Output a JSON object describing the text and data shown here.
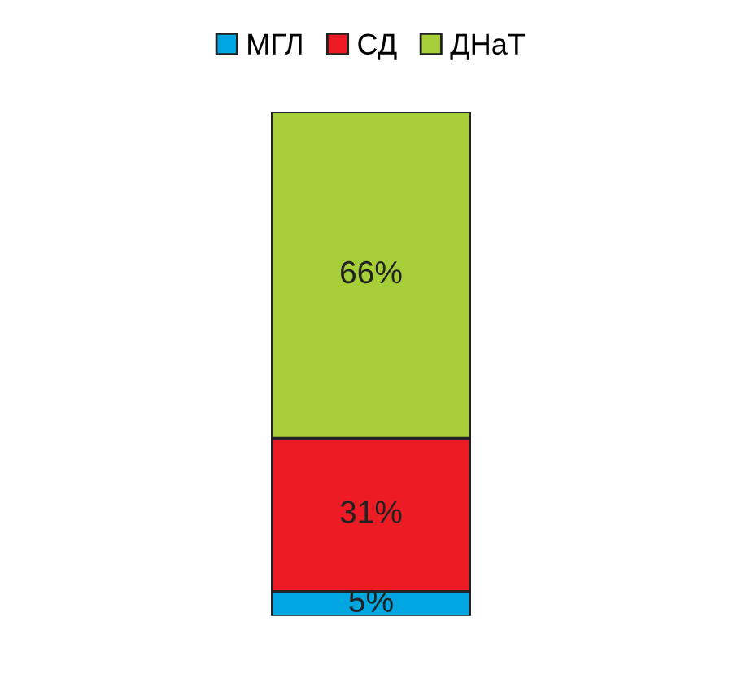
{
  "chart_data": {
    "type": "bar",
    "stacked": true,
    "categories": [
      null
    ],
    "series": [
      {
        "name": "МГЛ",
        "color": "#00a6e0",
        "values": [
          5
        ],
        "value_labels": [
          "5%"
        ]
      },
      {
        "name": "СД",
        "color": "#ed1c24",
        "values": [
          31
        ],
        "value_labels": [
          "31%"
        ]
      },
      {
        "name": "ДНаТ",
        "color": "#a6ce39",
        "values": [
          66
        ],
        "value_labels": [
          "66%"
        ]
      }
    ],
    "legend": "top"
  }
}
